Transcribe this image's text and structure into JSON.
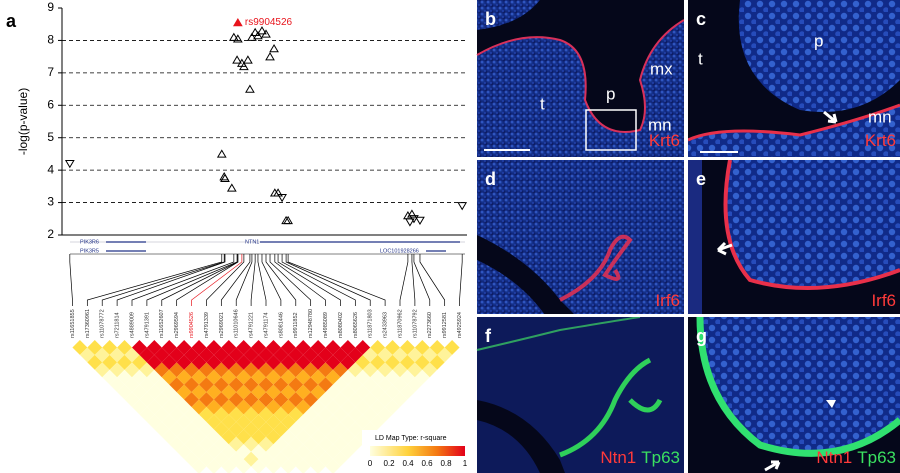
{
  "chart_data": {
    "type": "scatter",
    "panel": "a",
    "ylabel": "-log(p-value)",
    "annotation": "rs9904526",
    "ylim": [
      2,
      9
    ],
    "yticks": [
      2,
      3,
      4,
      5,
      6,
      7,
      8,
      9
    ],
    "xlim": [
      0,
      100
    ],
    "grid": true,
    "series": [
      {
        "marker": "triangle-up",
        "color": "#000000",
        "x": [
          39,
          39.6,
          39.8,
          41.5,
          42,
          42.8,
          43,
          44,
          44.5,
          45.5,
          46,
          46.5,
          47.3,
          48,
          49,
          50,
          51,
          52,
          52.2,
          53,
          55,
          55.5,
          85.3,
          86.3
        ],
        "values": [
          4.5,
          3.8,
          3.75,
          3.45,
          8.1,
          7.4,
          8.05,
          7.3,
          7.2,
          7.4,
          6.5,
          8.1,
          8.25,
          8.15,
          8.3,
          8.2,
          7.5,
          7.75,
          3.3,
          3.3,
          2.45,
          2.45,
          2.6,
          2.65
        ]
      },
      {
        "marker": "triangle-down",
        "color": "#000000",
        "x": [
          1.2,
          54,
          85.8,
          86.8,
          88.3,
          98.8
        ],
        "values": [
          4.2,
          3.15,
          2.4,
          2.5,
          2.45,
          2.9
        ]
      },
      {
        "marker": "triangle-up-filled",
        "color": "#e8141c",
        "x": [
          43
        ],
        "values": [
          8.55
        ]
      }
    ],
    "genes": [
      {
        "name": "PIK3R6"
      },
      {
        "name": "PIK3R5"
      },
      {
        "name": "NTN1"
      },
      {
        "name": "LOC101928266"
      }
    ],
    "snps": [
      "rs11651855",
      "rs17360961",
      "rs11078772",
      "rs7211814",
      "rs4889009",
      "rs4791391",
      "rs11652607",
      "rs2969594",
      "rs9904526",
      "rs4791339",
      "rs2969021",
      "rs11010646",
      "rs4791221",
      "rs4791174",
      "rs8081446",
      "rs9911852",
      "rs12948780",
      "rs4985089",
      "rs8080402",
      "rs8065626",
      "rs11871803",
      "rs2433963",
      "rs11870962",
      "rs11078792",
      "rs2273660",
      "rs9912581",
      "rs4925924"
    ],
    "ld_legend": {
      "title": "LD Map Type: r-square",
      "ticks": [
        0,
        0.2,
        0.4,
        0.6,
        0.8,
        1
      ]
    }
  },
  "panels": [
    {
      "letter": "b",
      "labels": [
        "t",
        "p",
        "mx",
        "mn"
      ],
      "stain": [
        "Krt6"
      ]
    },
    {
      "letter": "c",
      "labels": [
        "t",
        "p",
        "mn"
      ],
      "stain": [
        "Krt6"
      ]
    },
    {
      "letter": "d",
      "labels": [],
      "stain": [
        "Irf6"
      ]
    },
    {
      "letter": "e",
      "labels": [],
      "stain": [
        "Irf6"
      ]
    },
    {
      "letter": "f",
      "labels": [],
      "stain": [
        "Ntn1",
        "Tp63"
      ]
    },
    {
      "letter": "g",
      "labels": [],
      "stain": [
        "Ntn1",
        "Tp63"
      ]
    }
  ],
  "figure_letter": "a"
}
